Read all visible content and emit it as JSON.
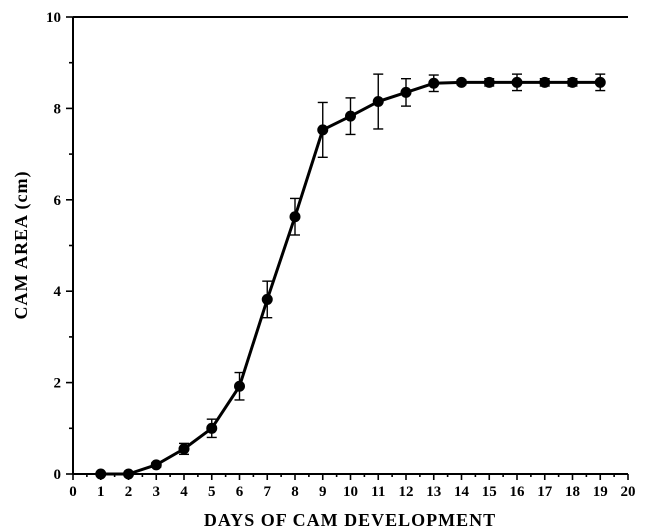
{
  "chart_data": {
    "type": "line",
    "title": "",
    "xlabel": "DAYS OF CAM DEVELOPMENT",
    "ylabel": "CAM AREA (cm)",
    "xlim": [
      0,
      20
    ],
    "ylim": [
      0,
      10
    ],
    "x_ticks": [
      "0",
      "1",
      "2",
      "3",
      "4",
      "5",
      "6",
      "7",
      "8",
      "9",
      "10",
      "11",
      "12",
      "13",
      "14",
      "15",
      "16",
      "17",
      "18",
      "19",
      "20"
    ],
    "y_ticks": [
      "0",
      "2",
      "4",
      "6",
      "8",
      "10"
    ],
    "grid": false,
    "legend": "none",
    "series": [
      {
        "x": [
          1,
          2,
          3,
          4,
          5,
          6,
          7,
          8,
          9,
          10,
          11,
          12,
          13,
          14,
          15,
          16,
          17,
          18,
          19
        ],
        "values": [
          0.0,
          0.0,
          0.2,
          0.55,
          1.0,
          1.92,
          3.82,
          5.63,
          7.53,
          7.83,
          8.15,
          8.35,
          8.55,
          8.57,
          8.57,
          8.57,
          8.57,
          8.57,
          8.57
        ],
        "error": [
          0.03,
          0.03,
          0.05,
          0.12,
          0.2,
          0.3,
          0.4,
          0.4,
          0.6,
          0.4,
          0.6,
          0.3,
          0.18,
          0.05,
          0.08,
          0.18,
          0.08,
          0.08,
          0.18
        ]
      }
    ]
  }
}
